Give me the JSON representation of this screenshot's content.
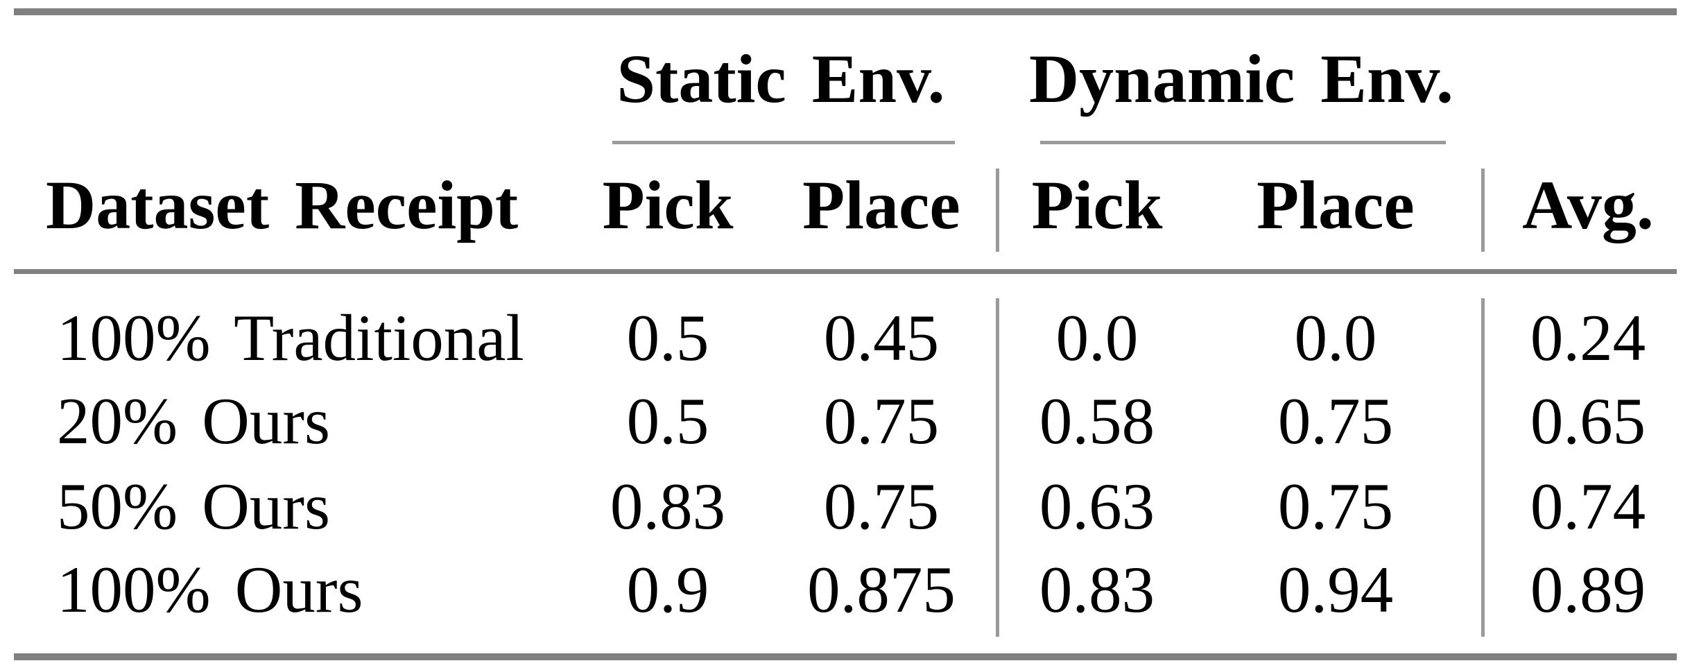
{
  "table": {
    "colors": {
      "heavy_rule": "#808080",
      "light_rule": "#9a9a9a",
      "text": "#000000",
      "background": "#ffffff"
    },
    "col_groups": [
      {
        "label": "Static Env."
      },
      {
        "label": "Dynamic Env."
      }
    ],
    "headers": {
      "dataset": "Dataset Receipt",
      "static_pick": "Pick",
      "static_place": "Place",
      "dynamic_pick": "Pick",
      "dynamic_place": "Place",
      "avg": "Avg."
    },
    "rows": [
      {
        "label": "100% Traditional",
        "static_pick": "0.5",
        "static_place": "0.45",
        "dynamic_pick": "0.0",
        "dynamic_place": "0.0",
        "avg": "0.24"
      },
      {
        "label": "20% Ours",
        "static_pick": "0.5",
        "static_place": "0.75",
        "dynamic_pick": "0.58",
        "dynamic_place": "0.75",
        "avg": "0.65"
      },
      {
        "label": "50% Ours",
        "static_pick": "0.83",
        "static_place": "0.75",
        "dynamic_pick": "0.63",
        "dynamic_place": "0.75",
        "avg": "0.74"
      },
      {
        "label": "100% Ours",
        "static_pick": "0.9",
        "static_place": "0.875",
        "dynamic_pick": "0.83",
        "dynamic_place": "0.94",
        "avg": "0.89"
      }
    ]
  },
  "chart_data": {
    "type": "table",
    "title": "",
    "column_groups": [
      "Static Env.",
      "Dynamic Env."
    ],
    "columns": [
      "Dataset Receipt",
      "Static Env. Pick",
      "Static Env. Place",
      "Dynamic Env. Pick",
      "Dynamic Env. Place",
      "Avg."
    ],
    "rows": [
      [
        "100% Traditional",
        0.5,
        0.45,
        0.0,
        0.0,
        0.24
      ],
      [
        "20% Ours",
        0.5,
        0.75,
        0.58,
        0.75,
        0.65
      ],
      [
        "50% Ours",
        0.83,
        0.75,
        0.63,
        0.75,
        0.74
      ],
      [
        "100% Ours",
        0.9,
        0.875,
        0.83,
        0.94,
        0.89
      ]
    ]
  }
}
